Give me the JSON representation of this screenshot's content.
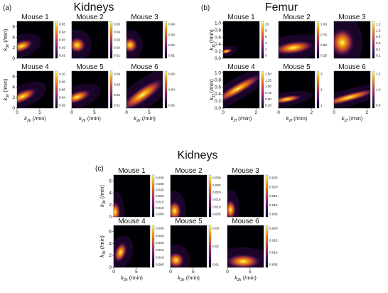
{
  "colormap": [
    "#000004",
    "#1b0c41",
    "#4a0c6b",
    "#781c6d",
    "#a52c60",
    "#cf4446",
    "#ed6925",
    "#fb9b06",
    "#f7d13d",
    "#fcffa4"
  ],
  "colorbar_ticks": {
    "a": [
      [
        "0.05",
        "0.04",
        "0.03",
        "0.02",
        "0.01"
      ],
      [
        "0.05",
        "0.04",
        "0.03",
        "0.02",
        "0.01"
      ],
      [
        "0.04",
        "0.03",
        "0.02",
        "0.01"
      ],
      [
        "0.10",
        "0.08",
        "0.06",
        "0.04",
        "0.02"
      ],
      [
        "0.04",
        "0.03",
        "0.02",
        "0.01"
      ],
      [
        "0.06",
        "0.04",
        "0.02"
      ]
    ],
    "b": [
      [
        "10",
        "8",
        "6",
        "4",
        "2",
        "0"
      ],
      [
        "1.00",
        "0.75",
        "0.50",
        "0.25"
      ],
      [
        "1.2",
        "1.0",
        "0.8",
        "0.6",
        "0.4",
        "0.2"
      ],
      [
        "1.50",
        "1.25",
        "1.00",
        "0.75",
        "0.50",
        "0.25"
      ],
      [
        "3",
        "2",
        "1"
      ],
      [
        "1.5",
        "1.0",
        "0.5"
      ]
    ],
    "c": [
      [
        "0.035",
        "0.030",
        "0.025",
        "0.020",
        "0.015",
        "0.010",
        "0.005"
      ],
      [
        "0.030",
        "0.025",
        "0.020",
        "0.015",
        "0.010",
        "0.005"
      ],
      [
        "0.025",
        "0.020",
        "0.015",
        "0.010",
        "0.005"
      ],
      [
        "0.030",
        "0.025",
        "0.020",
        "0.015",
        "0.010",
        "0.005"
      ],
      [
        "0.03",
        "0.02",
        "0.01"
      ],
      [
        "0.020",
        "0.015",
        "0.010",
        "0.005"
      ]
    ]
  },
  "chart_data": [
    {
      "type": "heatmap",
      "panel": "(a)",
      "title": "Kidneys",
      "xlabel": "k2k (/min)",
      "ylabel": "k3k (/min)",
      "xlim": [
        0,
        8
      ],
      "ylim": [
        0,
        7
      ],
      "xticks": [
        "0",
        "5"
      ],
      "yticks": [
        "0",
        "2",
        "4",
        "6"
      ],
      "subplots": [
        {
          "title": "Mouse 1",
          "colorbar_max": 0.05,
          "peak": {
            "x": 1.0,
            "y": 2.3
          }
        },
        {
          "title": "Mouse 2",
          "colorbar_max": 0.05,
          "peak": {
            "x": 1.2,
            "y": 2.5
          }
        },
        {
          "title": "Mouse 3",
          "colorbar_max": 0.04,
          "peak": {
            "x": 0.8,
            "y": 2.5
          }
        },
        {
          "title": "Mouse 4",
          "colorbar_max": 0.1,
          "peak": {
            "x": 1.2,
            "y": 2.2
          }
        },
        {
          "title": "Mouse 5",
          "colorbar_max": 0.04,
          "peak": {
            "x": 1.2,
            "y": 2.1
          }
        },
        {
          "title": "Mouse 6",
          "colorbar_max": 0.06,
          "peak": {
            "x": 3.5,
            "y": 2.5
          }
        }
      ]
    },
    {
      "type": "heatmap",
      "panel": "(b)",
      "title": "Femur",
      "xlabel": "k2f (/min)",
      "ylabel": "k1f (/min)",
      "xlim": [
        0,
        2.2
      ],
      "ylim": [
        0,
        1.05
      ],
      "xticks": [
        "0",
        "2"
      ],
      "yticks": [
        "0.0",
        "0.2",
        "0.4",
        "0.6",
        "0.8",
        "1.0"
      ],
      "subplots": [
        {
          "title": "Mouse 1",
          "colorbar_max": 10,
          "peak": {
            "x": 0.2,
            "y": 0.2
          }
        },
        {
          "title": "Mouse 2",
          "colorbar_max": 1.0,
          "peak": {
            "x": 0.9,
            "y": 0.3
          }
        },
        {
          "title": "Mouse 3",
          "colorbar_max": 1.2,
          "peak": {
            "x": 0.5,
            "y": 0.45
          }
        },
        {
          "title": "Mouse 4",
          "colorbar_max": 1.5,
          "peak": {
            "x": 0.9,
            "y": 0.55
          }
        },
        {
          "title": "Mouse 5",
          "colorbar_max": 3,
          "peak": {
            "x": 0.5,
            "y": 0.25
          }
        },
        {
          "title": "Mouse 6",
          "colorbar_max": 1.5,
          "peak": {
            "x": 0.9,
            "y": 0.3
          }
        }
      ]
    },
    {
      "type": "heatmap",
      "panel": "(c)",
      "title": "Kidneys",
      "xlabel": "k2k (/min)",
      "ylabel": "k3k (/min)",
      "xlim": [
        0,
        8
      ],
      "ylim": [
        0,
        7
      ],
      "xticks": [
        "0",
        "5"
      ],
      "yticks": [
        "0",
        "2",
        "4",
        "6"
      ],
      "subplots": [
        {
          "title": "Mouse 1",
          "colorbar_max": 0.035,
          "peak": {
            "x": 0.3,
            "y": 0.8
          }
        },
        {
          "title": "Mouse 2",
          "colorbar_max": 0.03,
          "peak": {
            "x": 0.9,
            "y": 1.0
          }
        },
        {
          "title": "Mouse 3",
          "colorbar_max": 0.025,
          "peak": {
            "x": 0.7,
            "y": 1.2
          }
        },
        {
          "title": "Mouse 4",
          "colorbar_max": 0.03,
          "peak": {
            "x": 1.5,
            "y": 2.5
          }
        },
        {
          "title": "Mouse 5",
          "colorbar_max": 0.03,
          "peak": {
            "x": 1.2,
            "y": 1.2
          }
        },
        {
          "title": "Mouse 6",
          "colorbar_max": 0.02,
          "peak": {
            "x": 3.5,
            "y": 1.0
          }
        }
      ]
    }
  ]
}
